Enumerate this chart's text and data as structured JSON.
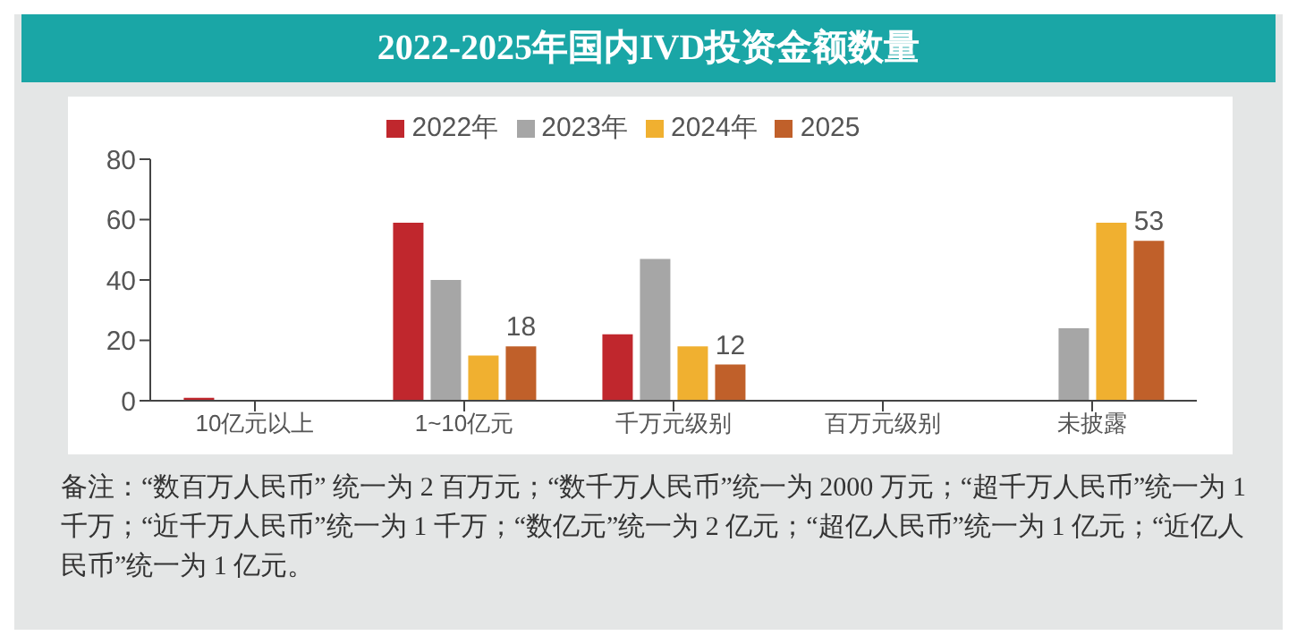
{
  "chart_data": {
    "type": "bar",
    "title": "2022-2025年国内IVD投资金额数量",
    "categories": [
      "10亿元以上",
      "1~10亿元",
      "千万元级别",
      "百万元级别",
      "未披露"
    ],
    "series": [
      {
        "name": "2022年",
        "color": "#c0272d",
        "values": [
          1,
          59,
          22,
          0,
          0
        ]
      },
      {
        "name": "2023年",
        "color": "#a6a6a6",
        "values": [
          0,
          40,
          47,
          0,
          24
        ]
      },
      {
        "name": "2024年",
        "color": "#f0b030",
        "values": [
          0,
          15,
          18,
          0,
          59
        ]
      },
      {
        "name": "2025",
        "color": "#c0602a",
        "values": [
          0,
          18,
          12,
          0,
          53
        ],
        "value_labels": [
          null,
          "18",
          "12",
          null,
          "53"
        ]
      }
    ],
    "ylim": [
      0,
      80
    ],
    "yticks": [
      0,
      20,
      40,
      60,
      80
    ],
    "grid": false,
    "legend": "top",
    "annotations": [
      "备注：“数百万人民币” 统一为 2 百万元；“数千万人民币”统一为 2000 万元；“超千万人民币”统一为 1 千万；“近千万人民币”统一为 1 千万；“数亿元”统一为 2 亿元；“超亿人民币”统一为 1 亿元；“近亿人民币”统一为 1 亿元。"
    ]
  }
}
